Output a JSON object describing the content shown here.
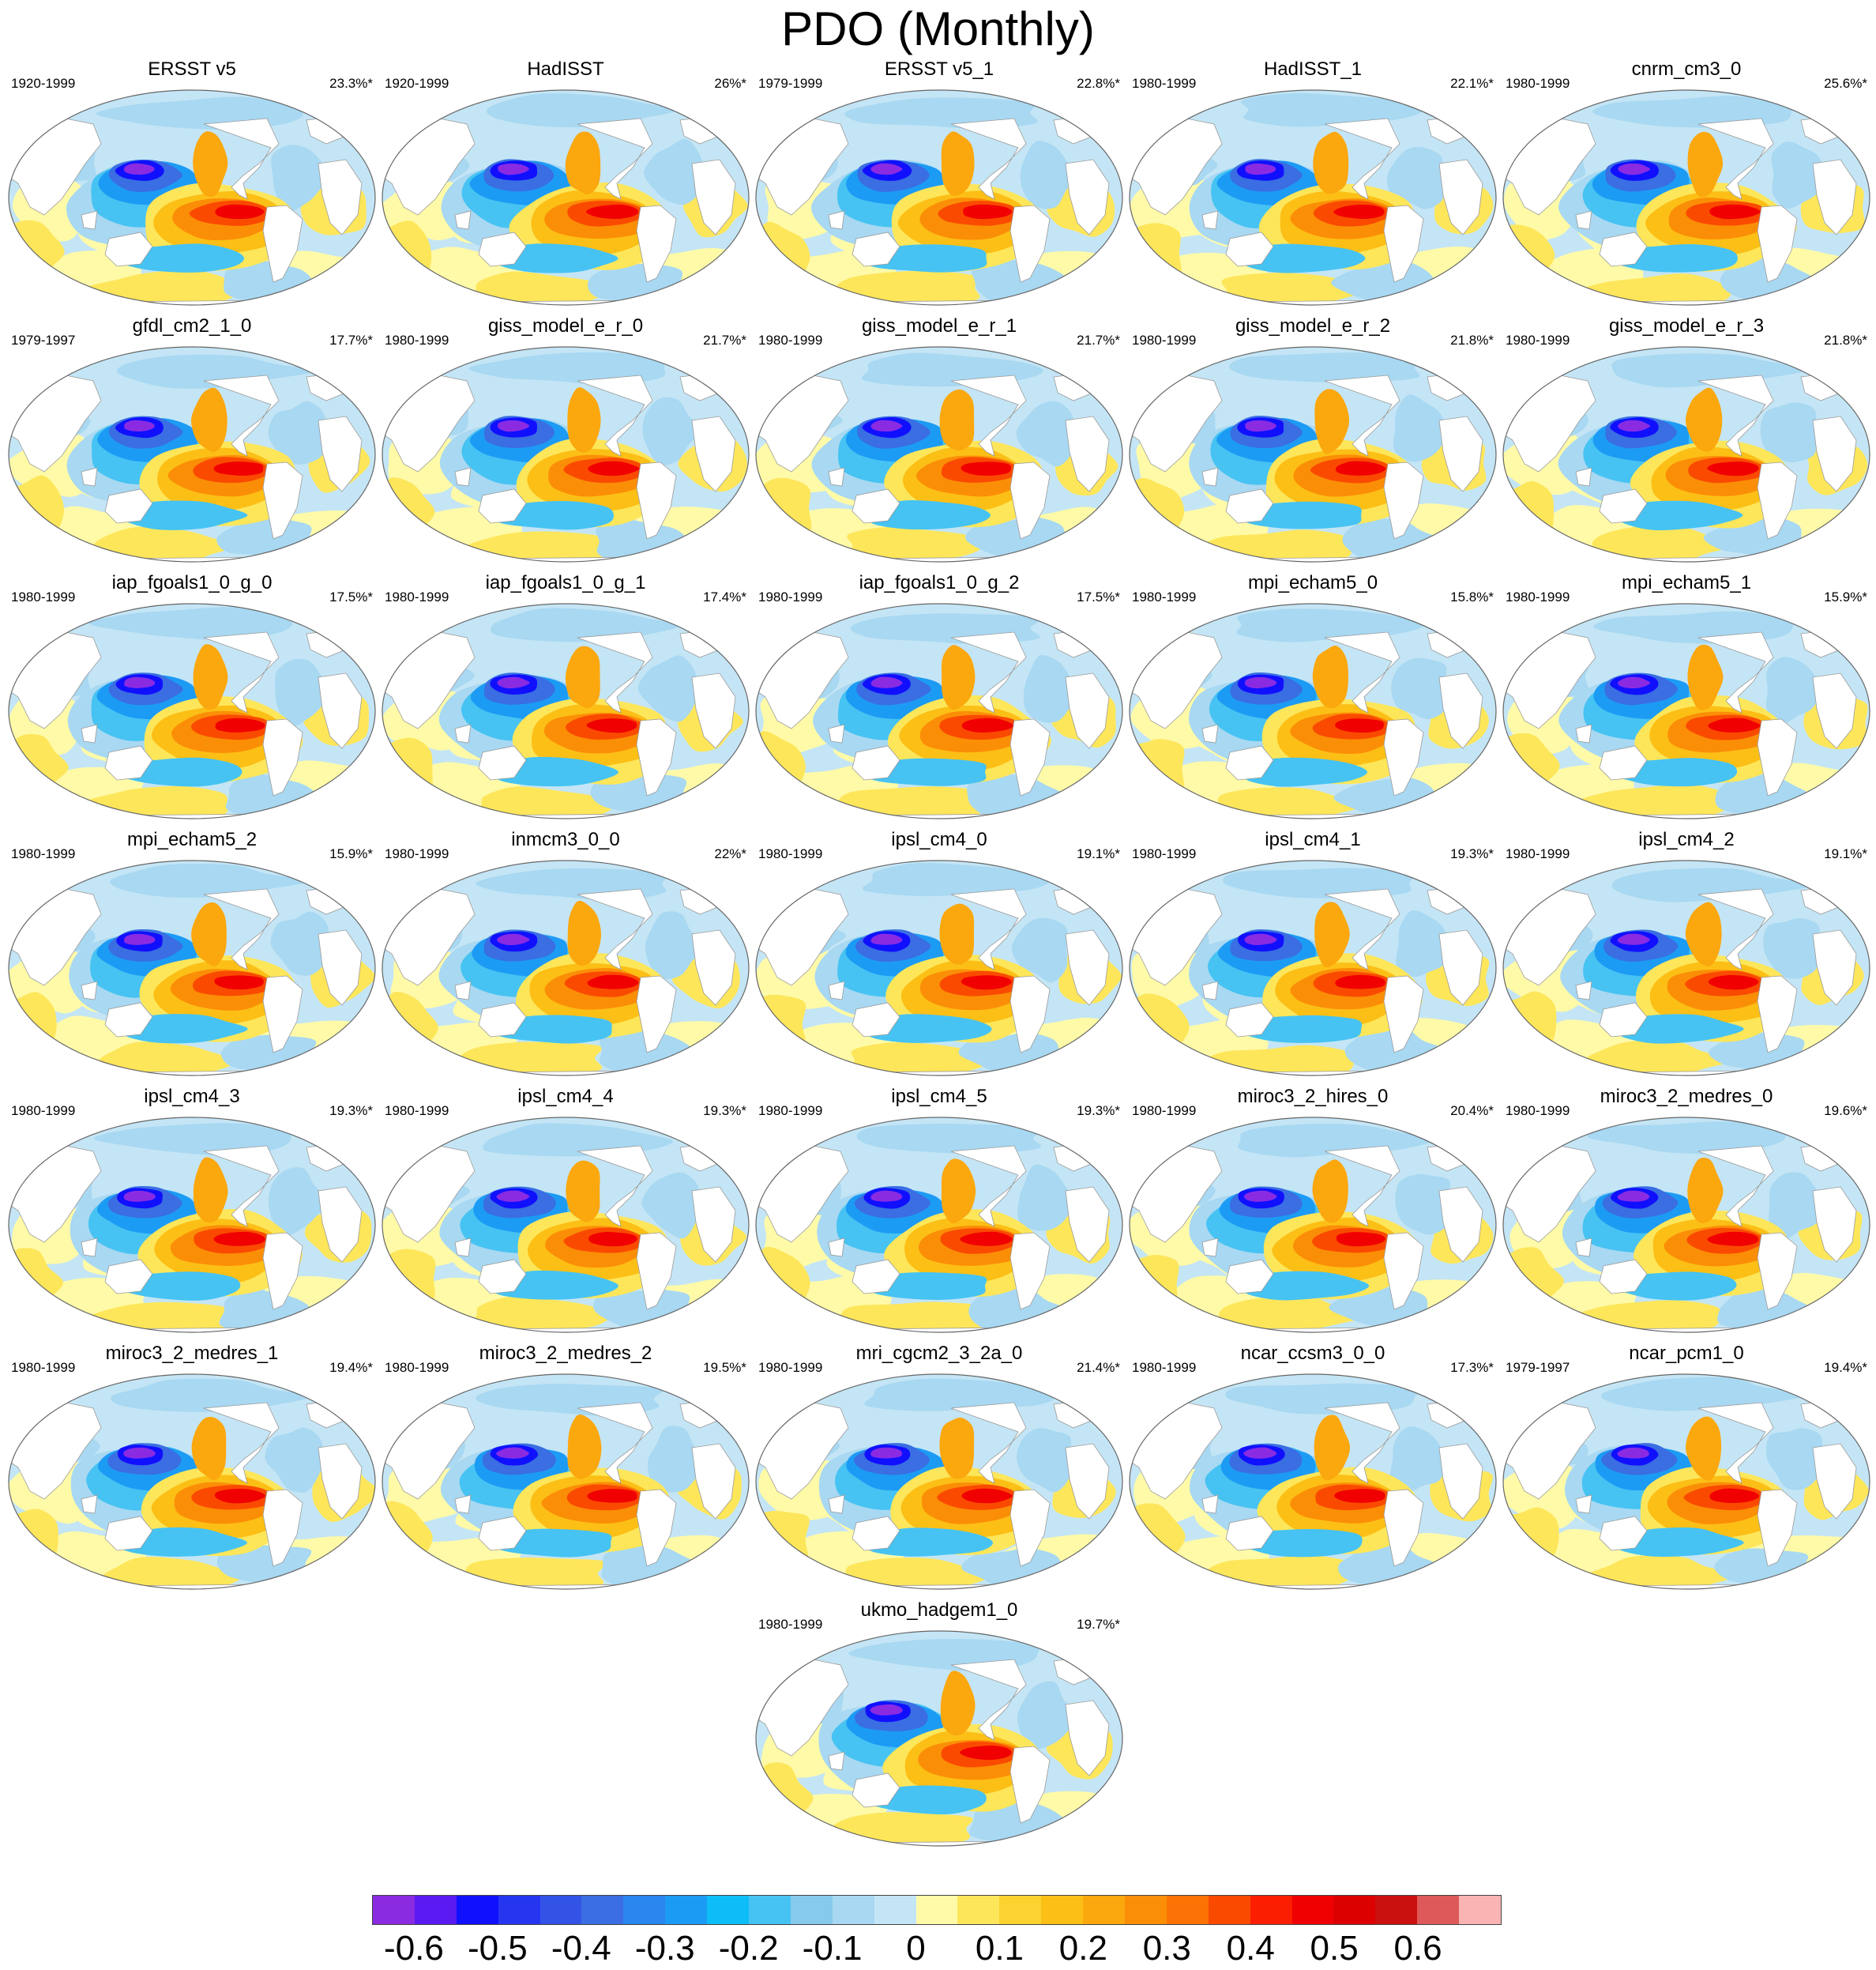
{
  "figure": {
    "title": "PDO (Monthly)"
  },
  "colorbar": {
    "colors": [
      "#8a2be2",
      "#5a19f0",
      "#1010ff",
      "#2636f0",
      "#3353e6",
      "#3a6ee2",
      "#2b86f0",
      "#1c9bf5",
      "#0dbdf8",
      "#46c3f2",
      "#86caed",
      "#a8d8f2",
      "#c4e5f5",
      "#fffaa8",
      "#fde65a",
      "#fcd231",
      "#fcbf16",
      "#fba70e",
      "#fb8e07",
      "#fa7304",
      "#fa4a00",
      "#fb1e00",
      "#f00000",
      "#dd0000",
      "#cb1010",
      "#de5a5a",
      "#fab4b4"
    ],
    "tick_labels": [
      "-0.6",
      "-0.5",
      "-0.4",
      "-0.3",
      "-0.2",
      "-0.1",
      "0",
      "0.1",
      "0.2",
      "0.3",
      "0.4",
      "0.5",
      "0.6"
    ]
  },
  "chart_data": {
    "type": "heatmap",
    "variable": "PDO (Monthly)",
    "levels": [
      -0.65,
      -0.6,
      -0.55,
      -0.5,
      -0.45,
      -0.4,
      -0.35,
      -0.3,
      -0.25,
      -0.2,
      -0.15,
      -0.1,
      -0.05,
      0,
      0.05,
      0.1,
      0.15,
      0.2,
      0.25,
      0.3,
      0.35,
      0.4,
      0.45,
      0.5,
      0.55,
      0.6,
      0.65
    ],
    "panels": [
      {
        "name": "ERSST v5",
        "years": "1920-1999",
        "pct": "23.3%*"
      },
      {
        "name": "HadISST",
        "years": "1920-1999",
        "pct": "26%*"
      },
      {
        "name": "ERSST v5_1",
        "years": "1979-1999",
        "pct": "22.8%*"
      },
      {
        "name": "HadISST_1",
        "years": "1980-1999",
        "pct": "22.1%*"
      },
      {
        "name": "cnrm_cm3_0",
        "years": "1980-1999",
        "pct": "25.6%*"
      },
      {
        "name": "gfdl_cm2_1_0",
        "years": "1979-1997",
        "pct": "17.7%*"
      },
      {
        "name": "giss_model_e_r_0",
        "years": "1980-1999",
        "pct": "21.7%*"
      },
      {
        "name": "giss_model_e_r_1",
        "years": "1980-1999",
        "pct": "21.7%*"
      },
      {
        "name": "giss_model_e_r_2",
        "years": "1980-1999",
        "pct": "21.8%*"
      },
      {
        "name": "giss_model_e_r_3",
        "years": "1980-1999",
        "pct": "21.8%*"
      },
      {
        "name": "iap_fgoals1_0_g_0",
        "years": "1980-1999",
        "pct": "17.5%*"
      },
      {
        "name": "iap_fgoals1_0_g_1",
        "years": "1980-1999",
        "pct": "17.4%*"
      },
      {
        "name": "iap_fgoals1_0_g_2",
        "years": "1980-1999",
        "pct": "17.5%*"
      },
      {
        "name": "mpi_echam5_0",
        "years": "1980-1999",
        "pct": "15.8%*"
      },
      {
        "name": "mpi_echam5_1",
        "years": "1980-1999",
        "pct": "15.9%*"
      },
      {
        "name": "mpi_echam5_2",
        "years": "1980-1999",
        "pct": "15.9%*"
      },
      {
        "name": "inmcm3_0_0",
        "years": "1980-1999",
        "pct": "22%*"
      },
      {
        "name": "ipsl_cm4_0",
        "years": "1980-1999",
        "pct": "19.1%*"
      },
      {
        "name": "ipsl_cm4_1",
        "years": "1980-1999",
        "pct": "19.3%*"
      },
      {
        "name": "ipsl_cm4_2",
        "years": "1980-1999",
        "pct": "19.1%*"
      },
      {
        "name": "ipsl_cm4_3",
        "years": "1980-1999",
        "pct": "19.3%*"
      },
      {
        "name": "ipsl_cm4_4",
        "years": "1980-1999",
        "pct": "19.3%*"
      },
      {
        "name": "ipsl_cm4_5",
        "years": "1980-1999",
        "pct": "19.3%*"
      },
      {
        "name": "miroc3_2_hires_0",
        "years": "1980-1999",
        "pct": "20.4%*"
      },
      {
        "name": "miroc3_2_medres_0",
        "years": "1980-1999",
        "pct": "19.6%*"
      },
      {
        "name": "miroc3_2_medres_1",
        "years": "1980-1999",
        "pct": "19.4%*"
      },
      {
        "name": "miroc3_2_medres_2",
        "years": "1980-1999",
        "pct": "19.5%*"
      },
      {
        "name": "mri_cgcm2_3_2a_0",
        "years": "1980-1999",
        "pct": "21.4%*"
      },
      {
        "name": "ncar_ccsm3_0_0",
        "years": "1980-1999",
        "pct": "17.3%*"
      },
      {
        "name": "ncar_pcm1_0",
        "years": "1979-1997",
        "pct": "19.4%*"
      },
      {
        "name": "ukmo_hadgem1_0",
        "years": "1980-1999",
        "pct": "19.7%*"
      }
    ]
  }
}
